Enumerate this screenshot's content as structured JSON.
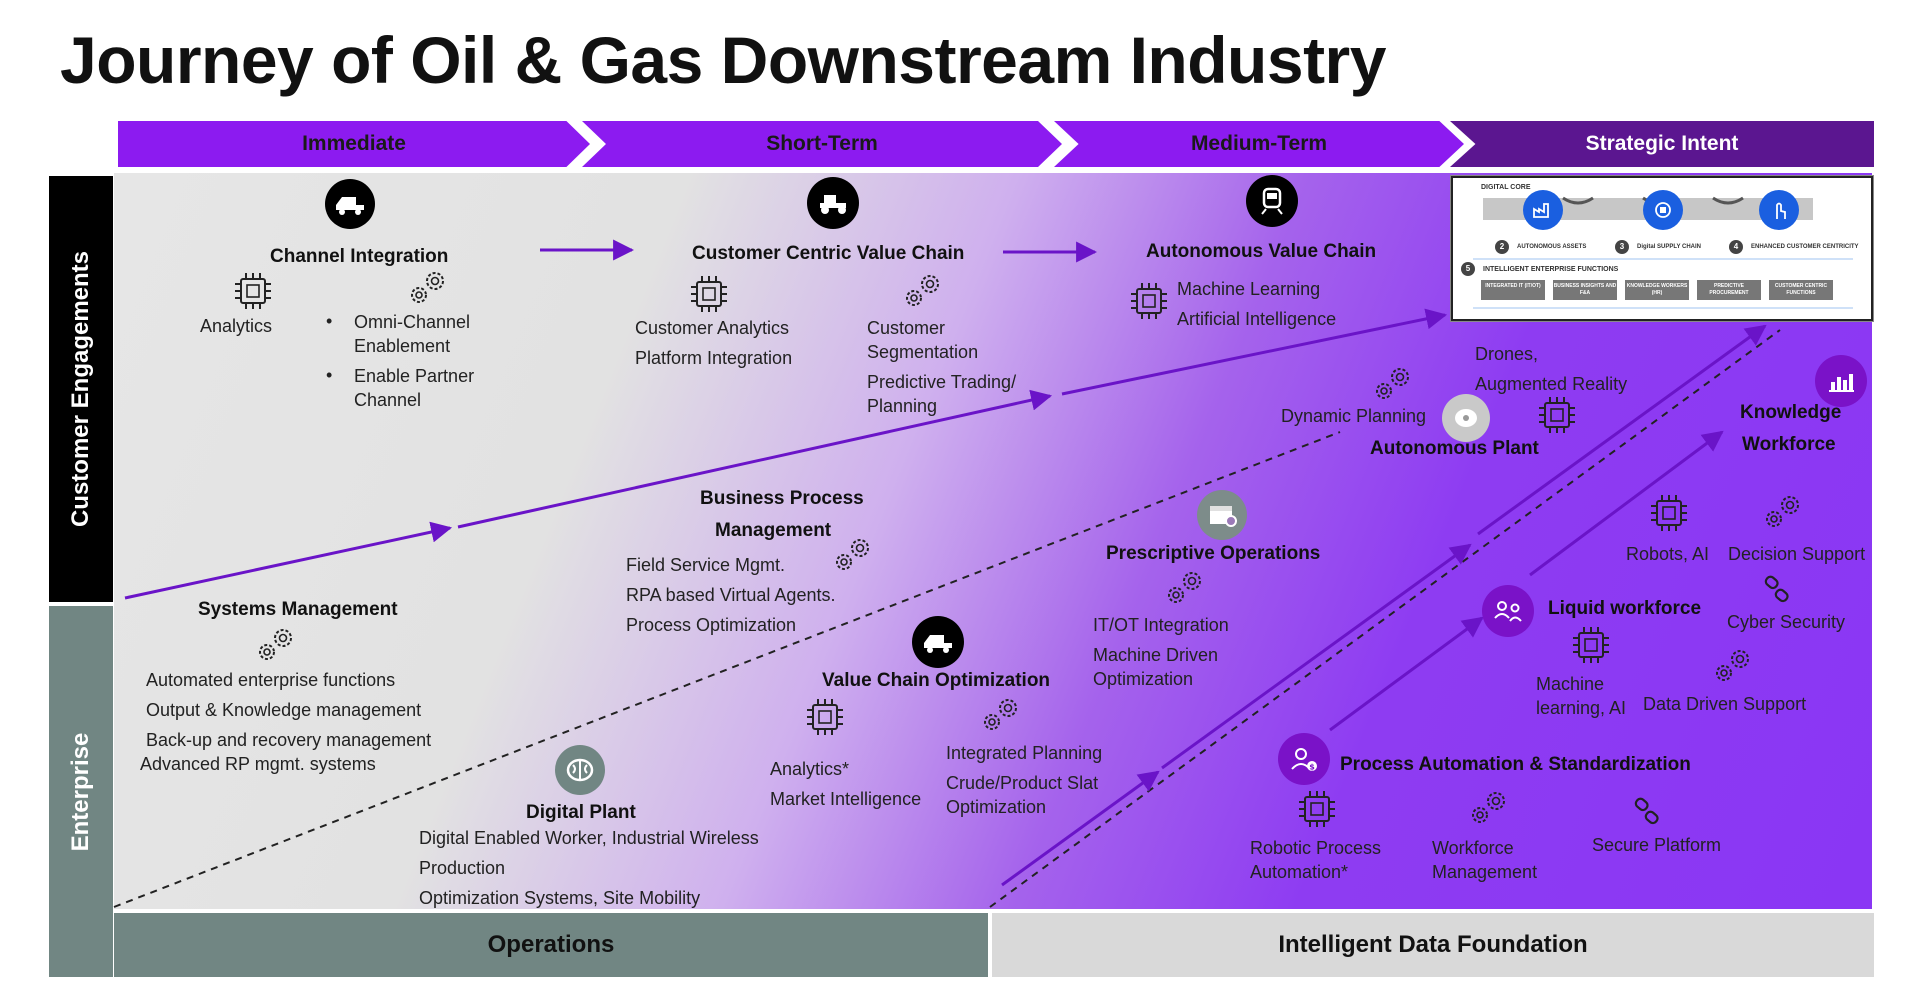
{
  "title": "Journey of Oil & Gas Downstream Industry",
  "phases": [
    "Immediate",
    "Short-Term",
    "Medium-Term",
    "Strategic Intent"
  ],
  "rows": [
    "Customer Engagements",
    "Enterprise"
  ],
  "foundation": [
    "Operations",
    "Intelligent Data Foundation"
  ],
  "channel_integration": {
    "heading": "Channel Integration",
    "analytics": "Analytics",
    "bullets": [
      "Omni-Channel",
      "Enablement",
      "Enable Partner",
      "Channel"
    ]
  },
  "customer_centric": {
    "heading": "Customer Centric Value Chain",
    "left": [
      "Customer Analytics",
      "Platform Integration"
    ],
    "right": [
      "Customer",
      "Segmentation",
      "Predictive Trading/",
      "Planning"
    ]
  },
  "autonomous_value_chain": {
    "heading": "Autonomous Value Chain",
    "items": [
      "Machine Learning",
      "Artificial Intelligence"
    ]
  },
  "digital_core": {
    "label": "DIGITAL CORE",
    "steps": [
      {
        "num": "2",
        "label": "AUTONOMOUS ASSETS"
      },
      {
        "num": "3",
        "label": "Digital SUPPLY CHAIN"
      },
      {
        "num": "4",
        "label": "ENHANCED CUSTOMER CENTRICITY"
      }
    ],
    "functions_num": "5",
    "functions_label": "INTELLIGENT ENTERPRISE FUNCTIONS",
    "functions": [
      "INTEGRATED IT (IT/OT)",
      "BUSINESS INSIGHTS AND F&A",
      "KNOWLEDGE WORKERS (HR)",
      "PREDICTIVE PROCUREMENT",
      "CUSTOMER CENTRIC FUNCTIONS"
    ]
  },
  "autonomous_plant": {
    "heading": "Autonomous Plant",
    "dynamic": "Dynamic Planning",
    "drones": [
      "Drones,",
      "Augmented Reality"
    ]
  },
  "knowledge_workforce": {
    "heading": [
      "Knowledge",
      "Workforce"
    ]
  },
  "business_process": {
    "heading": [
      "Business Process",
      "Management"
    ],
    "items": [
      "Field Service Mgmt.",
      "RPA based Virtual Agents.",
      "Process Optimization"
    ]
  },
  "systems_management": {
    "heading": "Systems Management",
    "items": [
      "Automated enterprise functions",
      "Output & Knowledge management",
      "Back-up and recovery management",
      "Advanced RP mgmt. systems"
    ]
  },
  "prescriptive_ops": {
    "heading": "Prescriptive Operations",
    "items": [
      "IT/OT Integration",
      "Machine Driven",
      "Optimization"
    ]
  },
  "value_chain_opt": {
    "heading": "Value Chain Optimization",
    "left": [
      "Analytics*",
      "Market Intelligence"
    ],
    "right": [
      "Integrated Planning",
      "Crude/Product Slat",
      "Optimization"
    ]
  },
  "digital_plant": {
    "heading": "Digital Plant",
    "items": [
      "Digital Enabled Worker, Industrial Wireless",
      "Production",
      "Optimization Systems, Site Mobility"
    ]
  },
  "liquid_workforce": {
    "heading": "Liquid workforce",
    "robots": "Robots, AI",
    "decision": "Decision Support",
    "cyber": "Cyber Security",
    "ml": [
      "Machine",
      "learning, AI"
    ],
    "data_driven": "Data Driven Support"
  },
  "process_automation": {
    "heading": "Process Automation & Standardization",
    "rpa": [
      "Robotic Process",
      "Automation*"
    ],
    "workforce": [
      "Workforce",
      "Management"
    ],
    "secure": "Secure Platform"
  },
  "colors": {
    "purple": "#8c1bf0",
    "dark_purple": "#5b1690",
    "black": "#000000",
    "slate": "#718683",
    "light_gray": "#d9d9d9",
    "arrow": "#6a14c8"
  }
}
